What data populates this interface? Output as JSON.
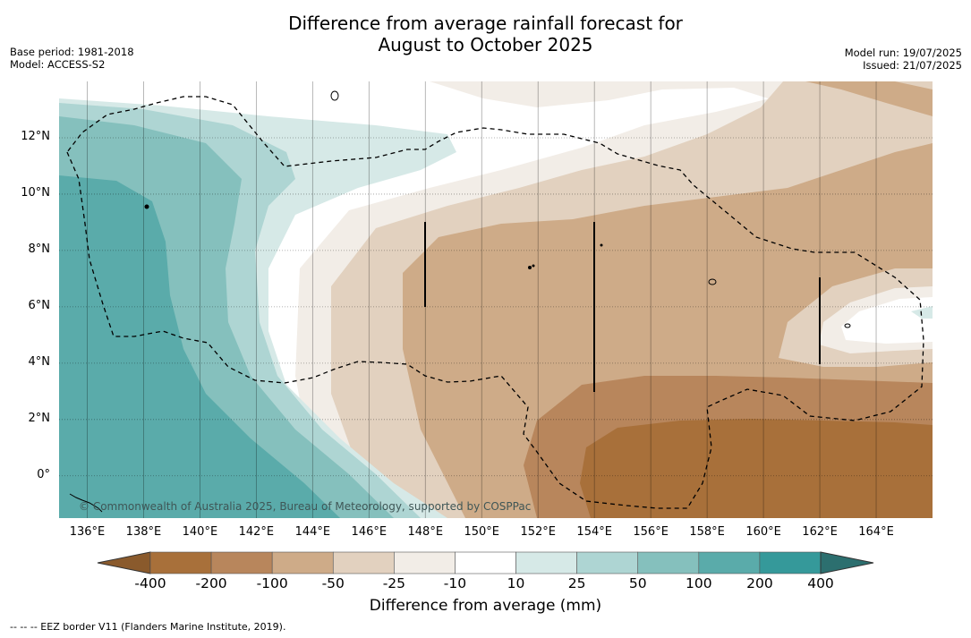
{
  "title": {
    "line1": "Difference from average rainfall forecast for",
    "line2": "August to October 2025"
  },
  "meta_left": {
    "base_period": "Base period: 1981-2018",
    "model": "Model: ACCESS-S2"
  },
  "meta_right": {
    "model_run": "Model run: 19/07/2025",
    "issued": "Issued: 21/07/2025"
  },
  "map": {
    "lon_range": [
      135,
      166
    ],
    "lat_range": [
      -1.5,
      14
    ],
    "lat_ticks": [
      {
        "value": 12,
        "label": "12°N"
      },
      {
        "value": 10,
        "label": "10°N"
      },
      {
        "value": 8,
        "label": "8°N"
      },
      {
        "value": 6,
        "label": "6°N"
      },
      {
        "value": 4,
        "label": "4°N"
      },
      {
        "value": 2,
        "label": "2°N"
      },
      {
        "value": 0,
        "label": "0°"
      }
    ],
    "lon_ticks": [
      {
        "value": 136,
        "label": "136°E"
      },
      {
        "value": 138,
        "label": "138°E"
      },
      {
        "value": 140,
        "label": "140°E"
      },
      {
        "value": 142,
        "label": "142°E"
      },
      {
        "value": 144,
        "label": "144°E"
      },
      {
        "value": 146,
        "label": "146°E"
      },
      {
        "value": 148,
        "label": "148°E"
      },
      {
        "value": 150,
        "label": "150°E"
      },
      {
        "value": 152,
        "label": "152°E"
      },
      {
        "value": 154,
        "label": "154°E"
      },
      {
        "value": 156,
        "label": "156°E"
      },
      {
        "value": 158,
        "label": "158°E"
      },
      {
        "value": 160,
        "label": "160°E"
      },
      {
        "value": 162,
        "label": "162°E"
      },
      {
        "value": 164,
        "label": "164°E"
      }
    ],
    "copyright": "© Commonwealth of Australia 2025, Bureau of Meteorology, supported by COSPPac",
    "grid": true,
    "eez_border": "dashed"
  },
  "colorbar": {
    "title": "Difference from average (mm)",
    "labels": [
      "-400",
      "-200",
      "-100",
      "-50",
      "-25",
      "-10",
      "10",
      "25",
      "50",
      "100",
      "200",
      "400"
    ],
    "colors": [
      "#a8703a",
      "#b8865c",
      "#ceab88",
      "#e2d1bf",
      "#f2ede7",
      "#ffffff",
      "#d6e9e7",
      "#aed5d3",
      "#85c0bd",
      "#5aabaa",
      "#35999a",
      "#2c6f6f"
    ],
    "under_color": "#8a5a2c",
    "over_color": "#2c6f6f"
  },
  "eez_note": "--  --  -- EEZ border V11 (Flanders Marine Institute, 2019)."
}
